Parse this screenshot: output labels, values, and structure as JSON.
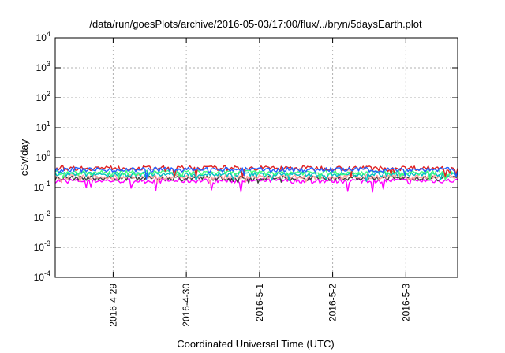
{
  "chart_data": {
    "type": "line",
    "title": "/data/run/goesPlots/archive/2016-05-03/17:00/flux/../bryn/5daysEarth.plot",
    "xlabel": "Coordinated Universal Time (UTC)",
    "ylabel": "cSv/day",
    "yscale": "log",
    "ylim": [
      0.0001,
      10000
    ],
    "xlim": [
      "2016-04-28T05:00",
      "2016-05-03T17:00"
    ],
    "grid": true,
    "x_ticks": [
      "2016-4-29",
      "2016-4-30",
      "2016-5-1",
      "2016-5-2",
      "2016-5-3"
    ],
    "y_ticks": [
      {
        "value": 0.0001,
        "base": "10",
        "exp": "-4"
      },
      {
        "value": 0.001,
        "base": "10",
        "exp": "-3"
      },
      {
        "value": 0.01,
        "base": "10",
        "exp": "-2"
      },
      {
        "value": 0.1,
        "base": "10",
        "exp": "-1"
      },
      {
        "value": 1,
        "base": "10",
        "exp": "0"
      },
      {
        "value": 10,
        "base": "10",
        "exp": "1"
      },
      {
        "value": 100,
        "base": "10",
        "exp": "2"
      },
      {
        "value": 1000,
        "base": "10",
        "exp": "3"
      },
      {
        "value": 10000,
        "base": "10",
        "exp": "4"
      }
    ],
    "series": [
      {
        "color": "#ff00ff",
        "level": 0.17,
        "min": 0.07
      },
      {
        "color": "#404040",
        "level": 0.21,
        "min": 0.12
      },
      {
        "color": "#ffa0a0",
        "level": 0.23,
        "min": 0.13
      },
      {
        "color": "#00c0c0",
        "level": 0.28,
        "min": 0.15
      },
      {
        "color": "#40ff80",
        "level": 0.32,
        "min": 0.17
      },
      {
        "color": "#e02020",
        "level": 0.45,
        "min": 0.2
      },
      {
        "color": "#2060ff",
        "level": 0.4,
        "min": 0.18
      }
    ]
  }
}
